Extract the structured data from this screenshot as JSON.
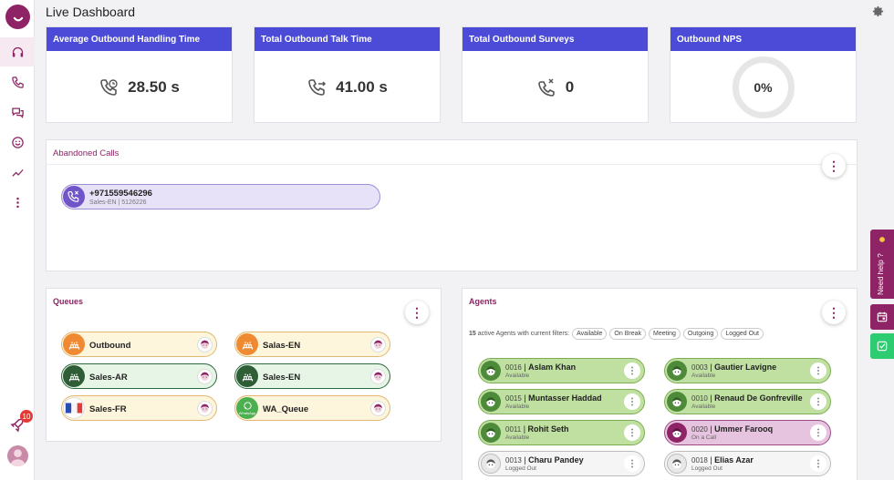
{
  "header": {
    "title": "Live Dashboard"
  },
  "sidebar": {
    "items": [
      {
        "icon": "headset-icon",
        "active": true
      },
      {
        "icon": "phone-icon"
      },
      {
        "icon": "chat-icon"
      },
      {
        "icon": "smiley-icon"
      },
      {
        "icon": "trend-icon"
      },
      {
        "icon": "more-vertical-icon"
      }
    ],
    "notifications_badge": "10"
  },
  "stats": [
    {
      "label": "Average Outbound Handling Time",
      "value": "28.50 s",
      "icon": "phone-clock-icon"
    },
    {
      "label": "Total Outbound Talk Time",
      "value": "41.00 s",
      "icon": "phone-transfer-icon"
    },
    {
      "label": "Total Outbound Surveys",
      "value": "0",
      "icon": "phone-survey-icon"
    },
    {
      "label": "Outbound NPS",
      "value": "0%",
      "icon": "ring-gauge"
    }
  ],
  "abandoned": {
    "title": "Abandoned Calls",
    "calls": [
      {
        "number": "+971559546296",
        "sub": "Sales-EN |  5126226"
      }
    ]
  },
  "queues": {
    "title": "Queues",
    "items": [
      {
        "label": "Outbound",
        "style": "orange"
      },
      {
        "label": "Salas-EN",
        "style": "orange"
      },
      {
        "label": "Sales-AR",
        "style": "green"
      },
      {
        "label": "Sales-EN",
        "style": "green"
      },
      {
        "label": "Sales-FR",
        "style": "orange"
      },
      {
        "label": "WA_Queue",
        "style": "orange"
      }
    ],
    "wa_icon_text": "WhatsApp"
  },
  "agents": {
    "title": "Agents",
    "count": "15",
    "filter_text": "active Agents with current filters:",
    "filters": [
      "Available",
      "On Break",
      "Meeting",
      "Outgoing",
      "Logged Out"
    ],
    "items": [
      {
        "ext": "0016",
        "name": "Aslam Khan",
        "status": "Available"
      },
      {
        "ext": "0003",
        "name": "Gautier Lavigne",
        "status": "Available"
      },
      {
        "ext": "0015",
        "name": "Muntasser Haddad",
        "status": "Available"
      },
      {
        "ext": "0010",
        "name": "Renaud De Gonfreville",
        "status": "Available"
      },
      {
        "ext": "0011",
        "name": "Rohit Seth",
        "status": "Available"
      },
      {
        "ext": "0020",
        "name": "Ummer Farooq",
        "status": "On a Call"
      },
      {
        "ext": "0013",
        "name": "Charu Pandey",
        "status": "Logged Out"
      },
      {
        "ext": "0018",
        "name": "Elias Azar",
        "status": "Logged Out"
      }
    ]
  },
  "right_tabs": {
    "help": "Need help ?"
  }
}
